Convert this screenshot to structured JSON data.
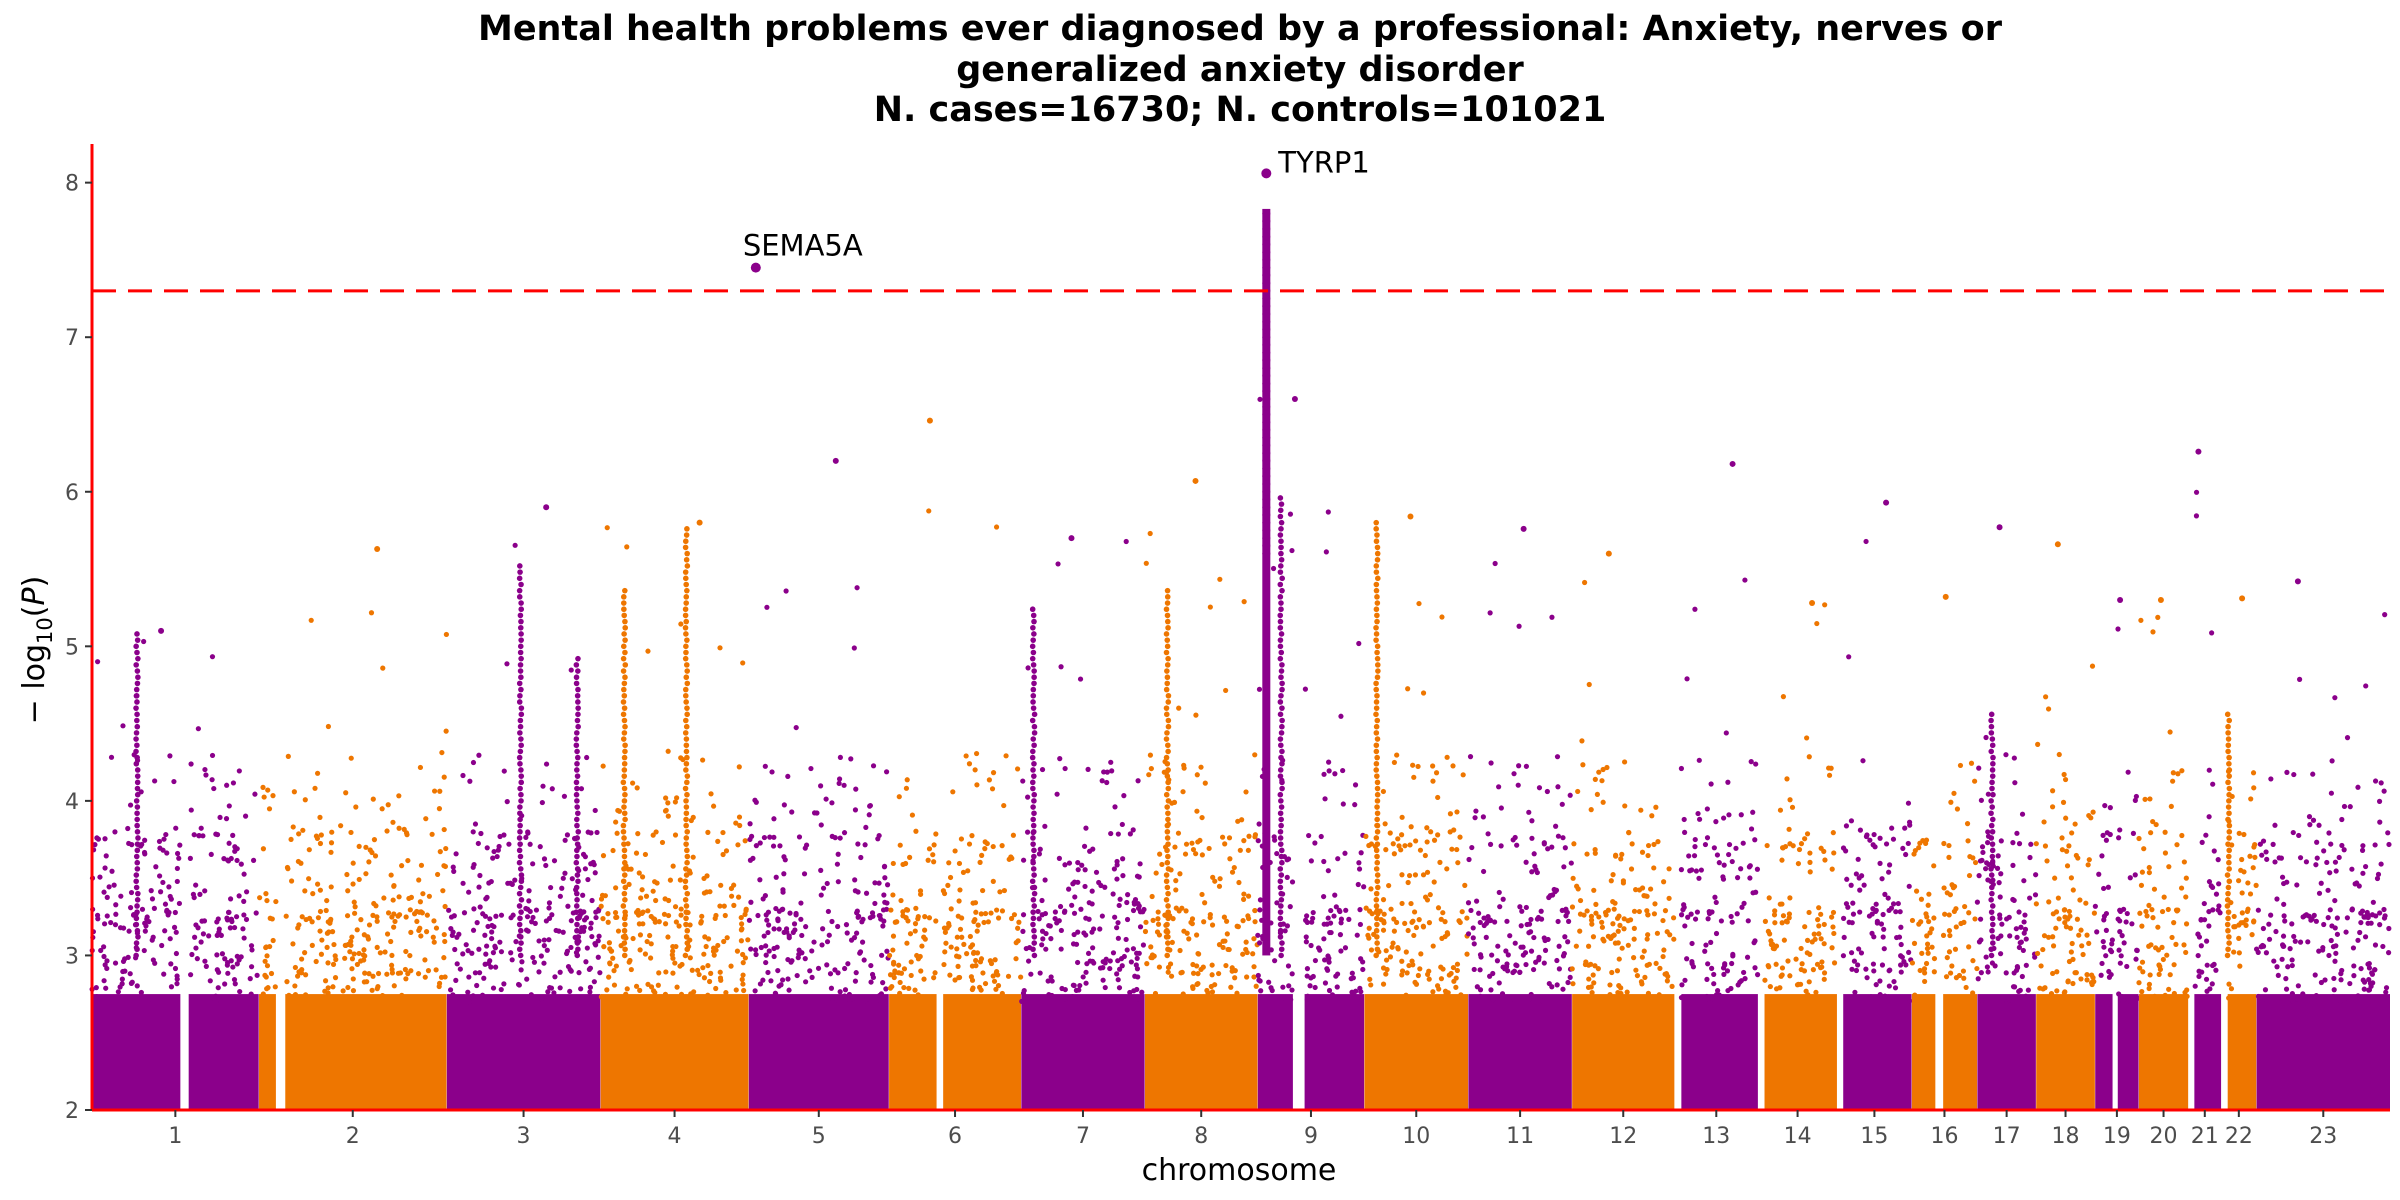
{
  "chart_data": {
    "type": "scatter",
    "subtype": "manhattan",
    "title_lines": [
      "Mental health problems ever diagnosed by a professional: Anxiety, nerves or",
      "generalized anxiety disorder",
      "N. cases=16730; N. controls=101021"
    ],
    "xlabel": "chromosome",
    "ylabel": "− log10(P)",
    "ylim": [
      2,
      8.25
    ],
    "yticks": [
      "2",
      "3",
      "4",
      "5",
      "6",
      "7",
      "8"
    ],
    "grid": false,
    "significance_threshold": 7.3,
    "colors": {
      "odd": "#8b008b",
      "even": "#ee7600",
      "threshold": "#ff0000",
      "axis": "#ff0000"
    },
    "chromosomes": [
      {
        "label": "1",
        "start": 0.0,
        "end": 9.72,
        "max": 5.1,
        "gap": [
          0.53,
          0.58
        ]
      },
      {
        "label": "2",
        "start": 9.74,
        "end": 20.67,
        "max": 5.63,
        "gap": [
          0.09,
          0.14
        ]
      },
      {
        "label": "3",
        "start": 20.69,
        "end": 29.64,
        "max": 5.9
      },
      {
        "label": "4",
        "start": 29.66,
        "end": 38.28,
        "max": 5.8
      },
      {
        "label": "5",
        "start": 38.3,
        "end": 46.46,
        "max": 6.2
      },
      {
        "label": "6",
        "start": 46.48,
        "end": 54.17,
        "max": 6.46,
        "gap": [
          0.36,
          0.41
        ]
      },
      {
        "label": "7",
        "start": 54.19,
        "end": 61.38,
        "max": 5.7
      },
      {
        "label": "8",
        "start": 61.4,
        "end": 67.96,
        "max": 6.07
      },
      {
        "label": "9",
        "start": 67.98,
        "end": 74.18,
        "max": 6.6,
        "gap": [
          0.33,
          0.44
        ]
      },
      {
        "label": "10",
        "start": 74.2,
        "end": 80.24,
        "max": 5.84
      },
      {
        "label": "11",
        "start": 80.26,
        "end": 86.29,
        "max": 5.76
      },
      {
        "label": "12",
        "start": 86.31,
        "end": 92.27,
        "max": 5.6
      },
      {
        "label": "13",
        "start": 92.29,
        "end": 97.14,
        "max": 6.18,
        "gap": [
          0.0,
          0.08
        ]
      },
      {
        "label": "14",
        "start": 97.16,
        "end": 101.75,
        "max": 5.28,
        "gap": [
          0.0,
          0.08
        ]
      },
      {
        "label": "15",
        "start": 101.77,
        "end": 106.1,
        "max": 5.93,
        "gap": [
          0.0,
          0.08
        ]
      },
      {
        "label": "16",
        "start": 106.12,
        "end": 109.92,
        "max": 5.32,
        "gap": [
          0.36,
          0.48
        ]
      },
      {
        "label": "17",
        "start": 109.94,
        "end": 113.35,
        "max": 5.77
      },
      {
        "label": "18",
        "start": 113.37,
        "end": 116.79,
        "max": 5.66
      },
      {
        "label": "19",
        "start": 116.81,
        "end": 119.34,
        "max": 5.3,
        "gap": [
          0.4,
          0.52
        ]
      },
      {
        "label": "20",
        "start": 119.36,
        "end": 122.23,
        "max": 5.3
      },
      {
        "label": "21",
        "start": 122.25,
        "end": 124.15,
        "max": 6.26,
        "gap": [
          0.0,
          0.18
        ]
      },
      {
        "label": "22",
        "start": 124.17,
        "end": 126.2,
        "max": 5.31,
        "gap": [
          0.0,
          0.18
        ]
      },
      {
        "label": "23",
        "start": 126.22,
        "end": 134.0,
        "max": 5.42
      }
    ],
    "peaks": [
      {
        "chr": "1",
        "pos": 0.27,
        "top": 5.1
      },
      {
        "chr": "3",
        "pos": 0.48,
        "top": 5.55
      },
      {
        "chr": "3",
        "pos": 0.85,
        "top": 4.95
      },
      {
        "chr": "4",
        "pos": 0.16,
        "top": 5.4
      },
      {
        "chr": "4",
        "pos": 0.58,
        "top": 5.8
      },
      {
        "chr": "7",
        "pos": 0.1,
        "top": 5.25
      },
      {
        "chr": "8",
        "pos": 0.2,
        "top": 5.4
      },
      {
        "chr": "9",
        "pos": 0.22,
        "top": 6.0
      },
      {
        "chr": "10",
        "pos": 0.12,
        "top": 5.84
      },
      {
        "chr": "17",
        "pos": 0.25,
        "top": 4.6
      },
      {
        "chr": "22",
        "pos": 0.2,
        "top": 4.6
      }
    ],
    "tyrp1_column": {
      "chr": "9",
      "pos": 0.08,
      "bottom": 5.6,
      "top": 7.83
    },
    "highlights": [
      {
        "gene": "SEMA5A",
        "chr": "5",
        "pos": 0.05,
        "p": 7.45
      },
      {
        "gene": "TYRP1",
        "chr": "9",
        "pos": 0.08,
        "p": 8.06
      }
    ]
  }
}
